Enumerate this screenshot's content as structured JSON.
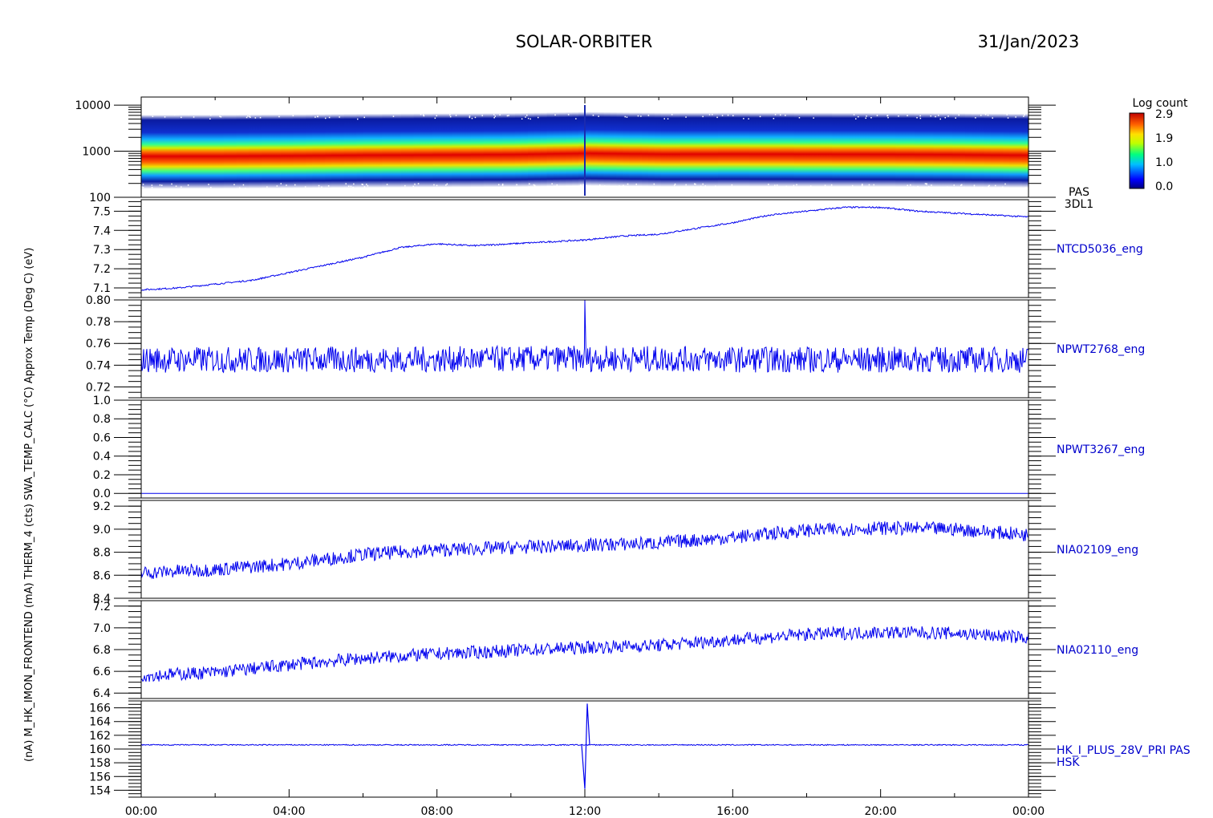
{
  "header": {
    "title": "SOLAR-ORBITER",
    "date": "31/Jan/2023"
  },
  "colorbar": {
    "label": "Log count",
    "ticks": [
      "2.9",
      "1.9",
      "1.0",
      "0.0"
    ]
  },
  "ylabel_overlap": "(nA) M_HK_IMON_FRONTEND (mA) THERM_4 (cts) SWA_TEMP_CALC (°C) Approx Temp (Deg C) (eV)",
  "colors": {
    "trace": "#0000ee",
    "label": "#0000cc",
    "axis": "#000000"
  },
  "chart_data": [
    {
      "type": "heatmap",
      "name": "PAS 3DL1",
      "side_label_1": "PAS",
      "side_label_2": "3DL1",
      "scale": "log",
      "ylim": [
        100,
        15000
      ],
      "ytick_values": [
        100,
        1000,
        10000
      ],
      "ytick_labels": [
        "100",
        "1000",
        "10000"
      ],
      "x_hours": [
        0,
        2,
        4,
        6,
        8,
        10,
        12,
        14,
        16,
        18,
        20,
        22,
        24
      ],
      "peak_energy_eV": [
        550,
        560,
        600,
        660,
        700,
        740,
        900,
        780,
        800,
        780,
        760,
        720,
        650
      ],
      "zlim": [
        0.0,
        2.9
      ]
    },
    {
      "type": "line",
      "label": "NTCD5036_eng",
      "ylim": [
        7.05,
        7.56
      ],
      "ytick_values": [
        7.1,
        7.2,
        7.3,
        7.4,
        7.5
      ],
      "ytick_labels": [
        "7.1",
        "7.2",
        "7.3",
        "7.4",
        "7.5"
      ],
      "x_hours": [
        0,
        1,
        2,
        3,
        4,
        5,
        6,
        7,
        8,
        9,
        10,
        11,
        12,
        13,
        14,
        15,
        16,
        17,
        18,
        19,
        20,
        21,
        22,
        23,
        24
      ],
      "y": [
        7.09,
        7.1,
        7.12,
        7.14,
        7.18,
        7.22,
        7.26,
        7.31,
        7.33,
        7.32,
        7.33,
        7.34,
        7.35,
        7.37,
        7.38,
        7.41,
        7.44,
        7.48,
        7.5,
        7.52,
        7.52,
        7.5,
        7.49,
        7.48,
        7.47
      ],
      "noise": 0.004
    },
    {
      "type": "line",
      "label": "NPWT2768_eng",
      "ylim": [
        0.71,
        0.8
      ],
      "ytick_values": [
        0.72,
        0.74,
        0.76,
        0.78,
        0.8
      ],
      "ytick_labels": [
        "0.72",
        "0.74",
        "0.76",
        "0.78",
        "0.80"
      ],
      "x_hours": [
        0,
        6,
        12,
        18,
        24
      ],
      "y": [
        0.745,
        0.745,
        0.746,
        0.745,
        0.745
      ],
      "noise": 0.012,
      "spike": {
        "x_hours": 12.0,
        "y": 0.8
      }
    },
    {
      "type": "line",
      "label": "NPWT3267_eng",
      "ylim": [
        -0.05,
        1.0
      ],
      "ytick_values": [
        0.0,
        0.2,
        0.4,
        0.6,
        0.8,
        1.0
      ],
      "ytick_labels": [
        "0.0",
        "0.2",
        "0.4",
        "0.6",
        "0.8",
        "1.0"
      ],
      "x_hours": [
        0,
        24
      ],
      "y": [
        0.0,
        0.0
      ],
      "noise": 0
    },
    {
      "type": "line",
      "label": "NIA02109_eng",
      "ylim": [
        8.4,
        9.25
      ],
      "ytick_values": [
        8.4,
        8.6,
        8.8,
        9.0,
        9.2
      ],
      "ytick_labels": [
        "8.4",
        "8.6",
        "8.8",
        "9.0",
        "9.2"
      ],
      "x_hours": [
        0,
        2,
        4,
        6,
        8,
        10,
        12,
        14,
        16,
        18,
        20,
        22,
        24
      ],
      "y": [
        8.62,
        8.65,
        8.7,
        8.78,
        8.82,
        8.84,
        8.86,
        8.88,
        8.93,
        8.99,
        9.01,
        9.0,
        8.95
      ],
      "noise": 0.06
    },
    {
      "type": "line",
      "label": "NIA02110_eng",
      "ylim": [
        6.35,
        7.25
      ],
      "ytick_values": [
        6.4,
        6.6,
        6.8,
        7.0,
        7.2
      ],
      "ytick_labels": [
        "6.4",
        "6.6",
        "6.8",
        "7.0",
        "7.2"
      ],
      "x_hours": [
        0,
        2,
        4,
        6,
        8,
        10,
        12,
        14,
        16,
        18,
        20,
        22,
        24
      ],
      "y": [
        6.56,
        6.59,
        6.66,
        6.72,
        6.76,
        6.79,
        6.82,
        6.84,
        6.89,
        6.94,
        6.96,
        6.95,
        6.91
      ],
      "noise": 0.06
    },
    {
      "type": "line",
      "label": "HK_I_PLUS_28V_PRI PAS",
      "label2": "HSK",
      "ylim": [
        153,
        167
      ],
      "ytick_values": [
        154,
        156,
        158,
        160,
        162,
        164,
        166
      ],
      "ytick_labels": [
        "154",
        "156",
        "158",
        "160",
        "162",
        "164",
        "166"
      ],
      "x_hours": [
        0,
        24
      ],
      "y": [
        160.6,
        160.6
      ],
      "noise": 0.08,
      "spike_pair": {
        "x_hours": 12.0,
        "low": 154.2,
        "high": 166.6
      }
    }
  ],
  "xaxis": {
    "ticks": [
      "00:00",
      "04:00",
      "08:00",
      "12:00",
      "16:00",
      "20:00",
      "00:00"
    ],
    "tick_hours": [
      0,
      4,
      8,
      12,
      16,
      20,
      24
    ]
  }
}
